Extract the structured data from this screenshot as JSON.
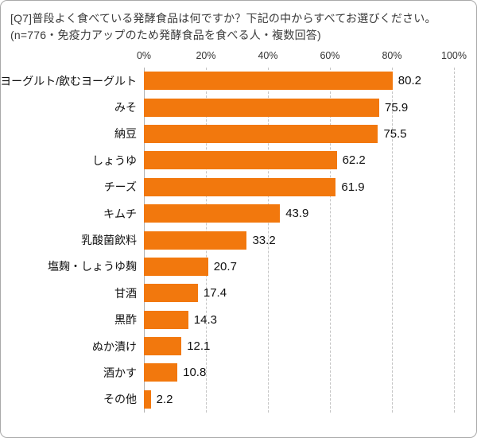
{
  "title": "[Q7]普段よく食べている発酵食品は何ですか？下記の中からすべてお選びください。(n=776・免疫力アップのため発酵食品を食べる人・複数回答)",
  "colors": {
    "bar": "#f2780d",
    "grid": "#c3c3c3",
    "axis_text": "#333333",
    "border": "#a9a9a9"
  },
  "chart_data": {
    "type": "bar",
    "orientation": "horizontal",
    "title": "[Q7]普段よく食べている発酵食品は何ですか？下記の中からすべてお選びください。(n=776・免疫力アップのため発酵食品を食べる人・複数回答)",
    "categories": [
      "ヨーグルト/飲むヨーグルト",
      "みそ",
      "納豆",
      "しょうゆ",
      "チーズ",
      "キムチ",
      "乳酸菌飲料",
      "塩麹・しょうゆ麹",
      "甘酒",
      "黒酢",
      "ぬか漬け",
      "酒かす",
      "その他"
    ],
    "values": [
      80.2,
      75.9,
      75.5,
      62.2,
      61.9,
      43.9,
      33.2,
      20.7,
      17.4,
      14.3,
      12.1,
      10.8,
      2.2
    ],
    "x_ticks": [
      "0%",
      "20%",
      "40%",
      "60%",
      "80%",
      "100%"
    ],
    "xlim": [
      0,
      100
    ],
    "xlabel": "",
    "ylabel": "",
    "grid": "vertical-dashed",
    "legend": "none",
    "value_labels": true
  }
}
